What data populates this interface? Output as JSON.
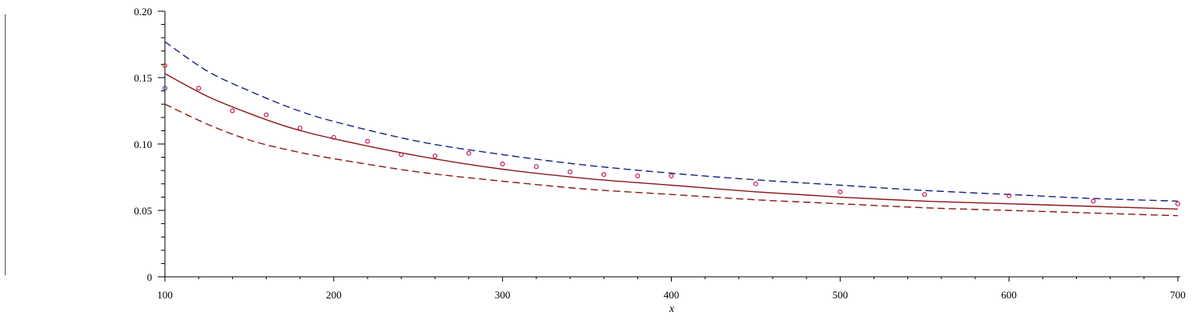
{
  "chart_data": {
    "type": "line",
    "xlabel": "x",
    "ylabel": "",
    "xlim": [
      100,
      700
    ],
    "ylim": [
      0,
      0.2
    ],
    "x_ticks": [
      100,
      200,
      300,
      400,
      500,
      600,
      700
    ],
    "x_tick_labels": [
      "100",
      "200",
      "300",
      "400",
      "500",
      "600",
      "700"
    ],
    "y_ticks": [
      0,
      0.05,
      0.1,
      0.15,
      0.2
    ],
    "y_tick_labels": [
      "0",
      "0.05",
      "0.10",
      "0.15",
      "0.20"
    ],
    "grid": false,
    "legend": "none",
    "curve_x": [
      100,
      125,
      150,
      175,
      200,
      250,
      300,
      350,
      400,
      450,
      500,
      550,
      600,
      650,
      700
    ],
    "series": [
      {
        "style": "dashed",
        "color": "#1a237e",
        "y": [
          0.177,
          0.155,
          0.14,
          0.127,
          0.117,
          0.102,
          0.092,
          0.084,
          0.078,
          0.073,
          0.069,
          0.065,
          0.062,
          0.059,
          0.057
        ]
      },
      {
        "style": "solid",
        "color": "#8b1a1a",
        "y": [
          0.153,
          0.136,
          0.123,
          0.112,
          0.104,
          0.091,
          0.081,
          0.074,
          0.069,
          0.064,
          0.06,
          0.057,
          0.055,
          0.053,
          0.051
        ]
      },
      {
        "style": "dashed",
        "color": "#8b1a1a",
        "y": [
          0.13,
          0.115,
          0.103,
          0.095,
          0.089,
          0.079,
          0.072,
          0.066,
          0.062,
          0.058,
          0.055,
          0.052,
          0.05,
          0.048,
          0.046
        ]
      }
    ],
    "points": [
      {
        "x": 100,
        "y": 0.159,
        "color": "#c0392b"
      },
      {
        "x": 100,
        "y": 0.142,
        "color": "#3b4fb8"
      },
      {
        "x": 120,
        "y": 0.142,
        "color": "#c2185b"
      },
      {
        "x": 140,
        "y": 0.125,
        "color": "#c2185b"
      },
      {
        "x": 160,
        "y": 0.122,
        "color": "#c2185b"
      },
      {
        "x": 180,
        "y": 0.112,
        "color": "#c2185b"
      },
      {
        "x": 200,
        "y": 0.105,
        "color": "#c2185b"
      },
      {
        "x": 220,
        "y": 0.102,
        "color": "#c2185b"
      },
      {
        "x": 240,
        "y": 0.092,
        "color": "#c2185b"
      },
      {
        "x": 260,
        "y": 0.091,
        "color": "#c2185b"
      },
      {
        "x": 280,
        "y": 0.093,
        "color": "#c2185b"
      },
      {
        "x": 300,
        "y": 0.085,
        "color": "#c2185b"
      },
      {
        "x": 320,
        "y": 0.083,
        "color": "#c2185b"
      },
      {
        "x": 340,
        "y": 0.079,
        "color": "#c2185b"
      },
      {
        "x": 360,
        "y": 0.077,
        "color": "#c2185b"
      },
      {
        "x": 380,
        "y": 0.076,
        "color": "#c2185b"
      },
      {
        "x": 400,
        "y": 0.076,
        "color": "#c2185b"
      },
      {
        "x": 450,
        "y": 0.07,
        "color": "#c2185b"
      },
      {
        "x": 500,
        "y": 0.064,
        "color": "#c2185b"
      },
      {
        "x": 550,
        "y": 0.062,
        "color": "#c2185b"
      },
      {
        "x": 600,
        "y": 0.061,
        "color": "#c2185b"
      },
      {
        "x": 650,
        "y": 0.057,
        "color": "#c2185b"
      },
      {
        "x": 700,
        "y": 0.055,
        "color": "#c2185b"
      }
    ]
  }
}
